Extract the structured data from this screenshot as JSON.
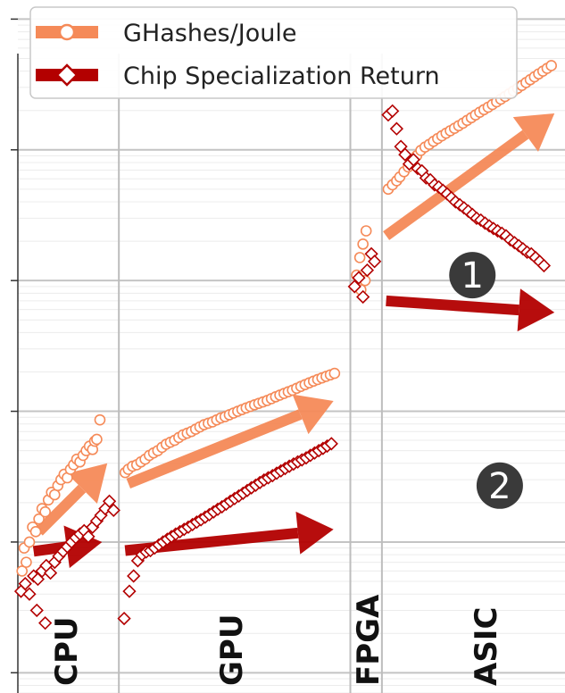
{
  "chart_data": {
    "type": "scatter",
    "title": "",
    "xlabel": "",
    "ylabel": "",
    "yscale": "log",
    "grid": true,
    "legend_position": "top-left",
    "regions": [
      "CPU",
      "GPU",
      "FPGA",
      "ASIC"
    ],
    "series": [
      {
        "name": "GHashes/Joule",
        "marker": "circle",
        "color": "#f58a58",
        "points": [
          [
            0.4,
            0.6
          ],
          [
            0.6,
            0.9
          ],
          [
            0.8,
            0.7
          ],
          [
            1.1,
            1.0
          ],
          [
            1.4,
            1.3
          ],
          [
            1.7,
            1.2
          ],
          [
            2.0,
            1.5
          ],
          [
            2.3,
            1.8
          ],
          [
            2.6,
            1.7
          ],
          [
            2.9,
            2.1
          ],
          [
            3.2,
            2.4
          ],
          [
            3.5,
            2.3
          ],
          [
            3.8,
            2.7
          ],
          [
            4.1,
            3.0
          ],
          [
            4.4,
            3.3
          ],
          [
            4.7,
            3.1
          ],
          [
            5.0,
            3.6
          ],
          [
            5.3,
            3.9
          ],
          [
            5.6,
            4.3
          ],
          [
            5.9,
            4.1
          ],
          [
            6.2,
            4.6
          ],
          [
            6.5,
            5.0
          ],
          [
            6.8,
            5.4
          ],
          [
            7.1,
            5.1
          ],
          [
            7.3,
            5.9
          ],
          [
            7.5,
            6.1
          ],
          [
            7.8,
            8.6
          ],
          [
            10.2,
            3.4
          ],
          [
            10.5,
            3.6
          ],
          [
            10.9,
            3.8
          ],
          [
            11.3,
            3.9
          ],
          [
            11.7,
            4.1
          ],
          [
            12.1,
            4.3
          ],
          [
            12.5,
            4.6
          ],
          [
            12.9,
            4.8
          ],
          [
            13.3,
            5.0
          ],
          [
            13.7,
            5.3
          ],
          [
            14.1,
            5.6
          ],
          [
            14.5,
            5.8
          ],
          [
            14.9,
            6.0
          ],
          [
            15.3,
            6.3
          ],
          [
            15.7,
            6.6
          ],
          [
            16.1,
            6.8
          ],
          [
            16.5,
            7.0
          ],
          [
            16.9,
            7.3
          ],
          [
            17.3,
            7.6
          ],
          [
            17.7,
            7.9
          ],
          [
            18.1,
            8.1
          ],
          [
            18.5,
            8.3
          ],
          [
            18.9,
            8.6
          ],
          [
            19.3,
            8.9
          ],
          [
            19.7,
            9.1
          ],
          [
            20.1,
            9.4
          ],
          [
            20.5,
            9.7
          ],
          [
            20.9,
            10.0
          ],
          [
            21.3,
            10.3
          ],
          [
            21.7,
            10.6
          ],
          [
            22.1,
            10.9
          ],
          [
            22.5,
            11.2
          ],
          [
            22.9,
            11.5
          ],
          [
            23.3,
            11.8
          ],
          [
            23.7,
            12.1
          ],
          [
            24.1,
            12.5
          ],
          [
            24.5,
            12.9
          ],
          [
            24.9,
            13.3
          ],
          [
            25.3,
            13.7
          ],
          [
            25.7,
            14.1
          ],
          [
            26.1,
            14.5
          ],
          [
            26.5,
            15.0
          ],
          [
            26.9,
            15.5
          ],
          [
            27.3,
            16.0
          ],
          [
            27.7,
            16.5
          ],
          [
            28.1,
            17.0
          ],
          [
            28.5,
            17.5
          ],
          [
            28.9,
            18.0
          ],
          [
            29.3,
            18.5
          ],
          [
            29.7,
            19.0
          ],
          [
            30.1,
            19.5
          ],
          [
            32.2,
            110
          ],
          [
            32.5,
            150
          ],
          [
            32.8,
            190
          ],
          [
            33.1,
            240
          ],
          [
            32.6,
            85
          ],
          [
            33.0,
            100
          ],
          [
            35.2,
            500
          ],
          [
            35.6,
            540
          ],
          [
            36.0,
            580
          ],
          [
            36.3,
            620
          ],
          [
            36.7,
            680
          ],
          [
            37.1,
            740
          ],
          [
            37.5,
            820
          ],
          [
            37.9,
            900
          ],
          [
            38.3,
            990
          ],
          [
            38.7,
            1050
          ],
          [
            39.1,
            1100
          ],
          [
            39.5,
            1160
          ],
          [
            39.9,
            1220
          ],
          [
            40.3,
            1280
          ],
          [
            40.7,
            1340
          ],
          [
            41.1,
            1400
          ],
          [
            41.5,
            1460
          ],
          [
            41.9,
            1530
          ],
          [
            42.3,
            1600
          ],
          [
            42.7,
            1680
          ],
          [
            43.1,
            1760
          ],
          [
            43.5,
            1850
          ],
          [
            43.9,
            1940
          ],
          [
            44.3,
            2030
          ],
          [
            44.7,
            2120
          ],
          [
            45.1,
            2220
          ],
          [
            45.5,
            2330
          ],
          [
            45.9,
            2440
          ],
          [
            46.3,
            2560
          ],
          [
            46.7,
            2680
          ],
          [
            47.1,
            2820
          ],
          [
            47.5,
            2960
          ],
          [
            47.9,
            3110
          ],
          [
            48.3,
            3270
          ],
          [
            48.7,
            3440
          ],
          [
            49.1,
            3620
          ],
          [
            49.5,
            3810
          ],
          [
            49.9,
            4000
          ],
          [
            50.3,
            4200
          ],
          [
            50.7,
            4410
          ]
        ]
      },
      {
        "name": "Chip Specialization Return",
        "marker": "diamond",
        "color": "#b30000",
        "points": [
          [
            0.3,
            0.42
          ],
          [
            0.7,
            0.48
          ],
          [
            1.1,
            0.4
          ],
          [
            1.5,
            0.55
          ],
          [
            1.9,
            0.52
          ],
          [
            2.3,
            0.6
          ],
          [
            2.7,
            0.66
          ],
          [
            3.1,
            0.58
          ],
          [
            3.5,
            0.7
          ],
          [
            3.9,
            0.78
          ],
          [
            4.3,
            0.85
          ],
          [
            4.7,
            0.92
          ],
          [
            5.1,
            1.0
          ],
          [
            5.5,
            1.08
          ],
          [
            5.9,
            1.15
          ],
          [
            6.3,
            1.22
          ],
          [
            6.7,
            1.1
          ],
          [
            7.1,
            1.3
          ],
          [
            7.5,
            1.45
          ],
          [
            7.9,
            1.6
          ],
          [
            8.3,
            1.8
          ],
          [
            8.7,
            2.05
          ],
          [
            9.1,
            1.75
          ],
          [
            1.8,
            0.3
          ],
          [
            2.6,
            0.24
          ],
          [
            10.1,
            0.26
          ],
          [
            10.6,
            0.42
          ],
          [
            11.0,
            0.55
          ],
          [
            11.4,
            0.72
          ],
          [
            11.8,
            0.8
          ],
          [
            12.2,
            0.84
          ],
          [
            12.6,
            0.86
          ],
          [
            13.0,
            0.9
          ],
          [
            13.4,
            0.95
          ],
          [
            13.8,
            1.0
          ],
          [
            14.2,
            1.05
          ],
          [
            14.6,
            1.1
          ],
          [
            15.0,
            1.15
          ],
          [
            15.4,
            1.2
          ],
          [
            15.8,
            1.25
          ],
          [
            16.2,
            1.3
          ],
          [
            16.6,
            1.36
          ],
          [
            17.0,
            1.42
          ],
          [
            17.4,
            1.48
          ],
          [
            17.8,
            1.55
          ],
          [
            18.2,
            1.62
          ],
          [
            18.6,
            1.7
          ],
          [
            19.0,
            1.78
          ],
          [
            19.4,
            1.86
          ],
          [
            19.8,
            1.95
          ],
          [
            20.2,
            2.05
          ],
          [
            20.6,
            2.15
          ],
          [
            21.0,
            2.25
          ],
          [
            21.4,
            2.36
          ],
          [
            21.8,
            2.48
          ],
          [
            22.2,
            2.6
          ],
          [
            22.6,
            2.72
          ],
          [
            23.0,
            2.85
          ],
          [
            23.4,
            2.98
          ],
          [
            23.8,
            3.1
          ],
          [
            24.2,
            3.22
          ],
          [
            24.6,
            3.36
          ],
          [
            25.0,
            3.5
          ],
          [
            25.4,
            3.65
          ],
          [
            25.8,
            3.8
          ],
          [
            26.2,
            3.95
          ],
          [
            26.6,
            4.1
          ],
          [
            27.0,
            4.25
          ],
          [
            27.4,
            4.4
          ],
          [
            27.8,
            4.6
          ],
          [
            28.2,
            4.8
          ],
          [
            28.6,
            5.0
          ],
          [
            29.0,
            5.2
          ],
          [
            29.4,
            5.42
          ],
          [
            29.8,
            5.65
          ],
          [
            32.0,
            90
          ],
          [
            32.4,
            105
          ],
          [
            32.8,
            75
          ],
          [
            33.2,
            120
          ],
          [
            33.6,
            160
          ],
          [
            33.9,
            140
          ],
          [
            35.2,
            1850
          ],
          [
            35.6,
            1980
          ],
          [
            36.0,
            1450
          ],
          [
            36.4,
            1060
          ],
          [
            36.8,
            920
          ],
          [
            37.2,
            780
          ],
          [
            37.6,
            840
          ],
          [
            38.0,
            720
          ],
          [
            38.4,
            690
          ],
          [
            38.8,
            610
          ],
          [
            39.2,
            590
          ],
          [
            39.6,
            540
          ],
          [
            40.0,
            520
          ],
          [
            40.4,
            490
          ],
          [
            40.8,
            460
          ],
          [
            41.2,
            430
          ],
          [
            41.6,
            400
          ],
          [
            42.0,
            380
          ],
          [
            42.4,
            360
          ],
          [
            42.8,
            340
          ],
          [
            43.2,
            320
          ],
          [
            43.6,
            300
          ],
          [
            44.0,
            290
          ],
          [
            44.4,
            275
          ],
          [
            44.8,
            262
          ],
          [
            45.2,
            250
          ],
          [
            45.6,
            240
          ],
          [
            46.0,
            230
          ],
          [
            46.4,
            220
          ],
          [
            46.8,
            205
          ],
          [
            47.2,
            195
          ],
          [
            47.6,
            185
          ],
          [
            48.0,
            175
          ],
          [
            48.4,
            165
          ],
          [
            48.8,
            160
          ],
          [
            49.2,
            150
          ],
          [
            49.6,
            140
          ],
          [
            50.0,
            130
          ]
        ]
      }
    ],
    "arrows": [
      {
        "series": "GHashes/Joule",
        "from": [
          2.0,
          1.2
        ],
        "to": [
          8.5,
          4.0
        ]
      },
      {
        "series": "GHashes/Joule",
        "from": [
          10.5,
          2.8
        ],
        "to": [
          30.0,
          12.0
        ]
      },
      {
        "series": "GHashes/Joule",
        "from": [
          35.0,
          220
        ],
        "to": [
          51.0,
          1900
        ]
      },
      {
        "series": "Chip Specialization Return",
        "from": [
          1.5,
          0.85
        ],
        "to": [
          8.0,
          1.0
        ]
      },
      {
        "series": "Chip Specialization Return",
        "from": [
          10.2,
          0.86
        ],
        "to": [
          30.0,
          1.25
        ]
      },
      {
        "series": "Chip Specialization Return",
        "from": [
          35.0,
          70
        ],
        "to": [
          51.0,
          57
        ]
      }
    ],
    "annotations": [
      {
        "label": "1",
        "x": 43.2,
        "y": 110
      },
      {
        "label": "2",
        "x": 45.8,
        "y": 2.7
      }
    ],
    "ylim": [
      0.07,
      14000
    ],
    "xlim": [
      0,
      52
    ]
  },
  "legend": {
    "entries": [
      "GHashes/Joule",
      "Chip Specialization Return"
    ]
  },
  "regions": [
    {
      "label": "CPU"
    },
    {
      "label": "GPU"
    },
    {
      "label": "FPGA"
    },
    {
      "label": "ASIC"
    }
  ],
  "badges": [
    "1",
    "2"
  ],
  "colors": {
    "orange_arrow": "#f58a58",
    "orange_marker": "#f58a58",
    "red_arrow": "#b30000",
    "red_marker": "#b30000",
    "badge_fill": "#3a3a3a",
    "grid": "#cccccc"
  }
}
